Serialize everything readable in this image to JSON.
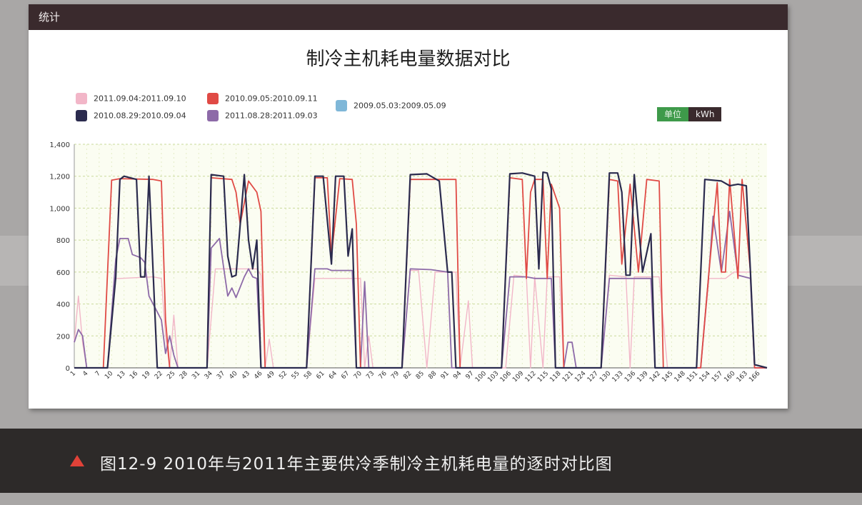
{
  "panel": {
    "header": "统计"
  },
  "chart_data": {
    "type": "line",
    "title": "制冷主机耗电量数据对比",
    "unit_label": "单位",
    "unit_value": "kWh",
    "ylim": [
      0,
      1400
    ],
    "yticks": [
      0,
      200,
      400,
      600,
      800,
      1000,
      1200,
      1400
    ],
    "ytick_labels": [
      "0",
      "200",
      "400",
      "600",
      "800",
      "1,000",
      "1,200",
      "1,400"
    ],
    "xticks": [
      "1",
      "4",
      "7",
      "10",
      "13",
      "16",
      "19",
      "22",
      "25",
      "28",
      "31",
      "34",
      "37",
      "40",
      "43",
      "46",
      "49",
      "52",
      "55",
      "58",
      "61",
      "64",
      "67",
      "70",
      "73",
      "76",
      "79",
      "82",
      "85",
      "88",
      "91",
      "94",
      "97",
      "100",
      "103",
      "106",
      "109",
      "112",
      "115",
      "118",
      "121",
      "124",
      "127",
      "130",
      "133",
      "136",
      "139",
      "142",
      "145",
      "148",
      "151",
      "154",
      "157",
      "160",
      "163",
      "166"
    ],
    "xlim": [
      1,
      168
    ],
    "grid": true,
    "legend_position": "top-left",
    "series": [
      {
        "name": "2011.09.04:2011.09.10",
        "color": "#f2b6c8",
        "points": [
          [
            1,
            160
          ],
          [
            2,
            450
          ],
          [
            3,
            160
          ],
          [
            4,
            0
          ],
          [
            9,
            0
          ],
          [
            11,
            560
          ],
          [
            12,
            560
          ],
          [
            20,
            570
          ],
          [
            22,
            560
          ],
          [
            23,
            200
          ],
          [
            24,
            0
          ],
          [
            25,
            330
          ],
          [
            26,
            0
          ],
          [
            27,
            0
          ],
          [
            33,
            0
          ],
          [
            35,
            620
          ],
          [
            45,
            620
          ],
          [
            46,
            580
          ],
          [
            47,
            0
          ],
          [
            48,
            180
          ],
          [
            49,
            0
          ],
          [
            57,
            0
          ],
          [
            59,
            560
          ],
          [
            70,
            560
          ],
          [
            71,
            0
          ],
          [
            72,
            200
          ],
          [
            73,
            0
          ],
          [
            80,
            0
          ],
          [
            82,
            610
          ],
          [
            84,
            610
          ],
          [
            86,
            0
          ],
          [
            88,
            600
          ],
          [
            93,
            600
          ],
          [
            94,
            0
          ],
          [
            96,
            420
          ],
          [
            97,
            0
          ],
          [
            105,
            0
          ],
          [
            107,
            580
          ],
          [
            110,
            570
          ],
          [
            111,
            0
          ],
          [
            112,
            570
          ],
          [
            114,
            0
          ],
          [
            115,
            570
          ],
          [
            118,
            570
          ],
          [
            119,
            0
          ],
          [
            128,
            0
          ],
          [
            130,
            580
          ],
          [
            134,
            570
          ],
          [
            135,
            0
          ],
          [
            136,
            570
          ],
          [
            142,
            570
          ],
          [
            144,
            0
          ],
          [
            152,
            0
          ],
          [
            154,
            560
          ],
          [
            158,
            560
          ],
          [
            160,
            600
          ],
          [
            164,
            600
          ],
          [
            165,
            0
          ],
          [
            168,
            0
          ]
        ]
      },
      {
        "name": "2010.09.05:2010.09.11",
        "color": "#e04a45",
        "points": [
          [
            1,
            0
          ],
          [
            8,
            0
          ],
          [
            10,
            1175
          ],
          [
            12,
            1185
          ],
          [
            20,
            1180
          ],
          [
            22,
            1170
          ],
          [
            23,
            300
          ],
          [
            24,
            0
          ],
          [
            33,
            0
          ],
          [
            34,
            1190
          ],
          [
            39,
            1180
          ],
          [
            40,
            1100
          ],
          [
            41,
            900
          ],
          [
            43,
            1170
          ],
          [
            45,
            1100
          ],
          [
            46,
            980
          ],
          [
            47,
            0
          ],
          [
            57,
            0
          ],
          [
            59,
            1190
          ],
          [
            62,
            1190
          ],
          [
            63,
            700
          ],
          [
            65,
            1185
          ],
          [
            68,
            1180
          ],
          [
            69,
            900
          ],
          [
            70,
            0
          ],
          [
            80,
            0
          ],
          [
            82,
            1180
          ],
          [
            93,
            1180
          ],
          [
            94,
            0
          ],
          [
            104,
            0
          ],
          [
            106,
            1190
          ],
          [
            109,
            1180
          ],
          [
            110,
            560
          ],
          [
            111,
            1100
          ],
          [
            112,
            1180
          ],
          [
            114,
            1180
          ],
          [
            115,
            560
          ],
          [
            116,
            1150
          ],
          [
            118,
            1000
          ],
          [
            119,
            0
          ],
          [
            128,
            0
          ],
          [
            130,
            1180
          ],
          [
            132,
            1170
          ],
          [
            133,
            650
          ],
          [
            135,
            1150
          ],
          [
            137,
            600
          ],
          [
            139,
            1180
          ],
          [
            142,
            1170
          ],
          [
            143,
            0
          ],
          [
            152,
            0
          ],
          [
            154,
            600
          ],
          [
            156,
            1160
          ],
          [
            157,
            600
          ],
          [
            158,
            600
          ],
          [
            159,
            1180
          ],
          [
            161,
            560
          ],
          [
            162,
            1180
          ],
          [
            164,
            600
          ],
          [
            165,
            0
          ],
          [
            168,
            0
          ]
        ]
      },
      {
        "name": "2010.08.29:2010.09.04",
        "color": "#2b2b4e",
        "points": [
          [
            1,
            0
          ],
          [
            9,
            0
          ],
          [
            11,
            570
          ],
          [
            12,
            1180
          ],
          [
            13,
            1200
          ],
          [
            16,
            1180
          ],
          [
            17,
            570
          ],
          [
            18,
            570
          ],
          [
            19,
            1200
          ],
          [
            20,
            600
          ],
          [
            21,
            0
          ],
          [
            33,
            0
          ],
          [
            34,
            1210
          ],
          [
            37,
            1200
          ],
          [
            38,
            700
          ],
          [
            39,
            570
          ],
          [
            40,
            580
          ],
          [
            42,
            1210
          ],
          [
            43,
            800
          ],
          [
            44,
            620
          ],
          [
            45,
            800
          ],
          [
            46,
            0
          ],
          [
            57,
            0
          ],
          [
            59,
            1200
          ],
          [
            61,
            1200
          ],
          [
            63,
            650
          ],
          [
            64,
            1200
          ],
          [
            66,
            1200
          ],
          [
            67,
            700
          ],
          [
            68,
            870
          ],
          [
            69,
            0
          ],
          [
            80,
            0
          ],
          [
            82,
            1210
          ],
          [
            86,
            1215
          ],
          [
            89,
            1170
          ],
          [
            91,
            600
          ],
          [
            92,
            600
          ],
          [
            93,
            0
          ],
          [
            104,
            0
          ],
          [
            106,
            1215
          ],
          [
            109,
            1220
          ],
          [
            112,
            1200
          ],
          [
            113,
            620
          ],
          [
            114,
            1225
          ],
          [
            115,
            1220
          ],
          [
            116,
            1120
          ],
          [
            117,
            0
          ],
          [
            128,
            0
          ],
          [
            130,
            1220
          ],
          [
            132,
            1220
          ],
          [
            133,
            1100
          ],
          [
            134,
            580
          ],
          [
            135,
            580
          ],
          [
            136,
            1210
          ],
          [
            138,
            600
          ],
          [
            140,
            840
          ],
          [
            141,
            0
          ],
          [
            151,
            0
          ],
          [
            153,
            1180
          ],
          [
            157,
            1170
          ],
          [
            159,
            1140
          ],
          [
            161,
            1150
          ],
          [
            163,
            1140
          ],
          [
            164,
            600
          ],
          [
            165,
            20
          ],
          [
            168,
            0
          ]
        ]
      },
      {
        "name": "2011.08.28:2011.09.03",
        "color": "#8d6aa8",
        "points": [
          [
            1,
            160
          ],
          [
            2,
            240
          ],
          [
            3,
            200
          ],
          [
            4,
            0
          ],
          [
            9,
            0
          ],
          [
            11,
            680
          ],
          [
            12,
            810
          ],
          [
            14,
            810
          ],
          [
            15,
            710
          ],
          [
            17,
            690
          ],
          [
            18,
            660
          ],
          [
            19,
            450
          ],
          [
            20,
            400
          ],
          [
            22,
            300
          ],
          [
            23,
            90
          ],
          [
            24,
            200
          ],
          [
            25,
            80
          ],
          [
            26,
            0
          ],
          [
            33,
            0
          ],
          [
            34,
            750
          ],
          [
            36,
            810
          ],
          [
            38,
            450
          ],
          [
            39,
            500
          ],
          [
            40,
            440
          ],
          [
            42,
            570
          ],
          [
            43,
            620
          ],
          [
            44,
            570
          ],
          [
            45,
            560
          ],
          [
            46,
            0
          ],
          [
            57,
            0
          ],
          [
            59,
            620
          ],
          [
            62,
            620
          ],
          [
            63,
            610
          ],
          [
            68,
            610
          ],
          [
            69,
            0
          ],
          [
            70,
            0
          ],
          [
            71,
            540
          ],
          [
            72,
            0
          ],
          [
            80,
            0
          ],
          [
            82,
            620
          ],
          [
            87,
            615
          ],
          [
            91,
            600
          ],
          [
            92,
            0
          ],
          [
            104,
            0
          ],
          [
            106,
            570
          ],
          [
            110,
            570
          ],
          [
            112,
            560
          ],
          [
            114,
            560
          ],
          [
            116,
            560
          ],
          [
            117,
            0
          ],
          [
            119,
            0
          ],
          [
            120,
            160
          ],
          [
            121,
            160
          ],
          [
            122,
            0
          ],
          [
            128,
            0
          ],
          [
            130,
            560
          ],
          [
            134,
            560
          ],
          [
            136,
            560
          ],
          [
            140,
            560
          ],
          [
            141,
            0
          ],
          [
            152,
            0
          ],
          [
            154,
            600
          ],
          [
            155,
            950
          ],
          [
            157,
            600
          ],
          [
            159,
            980
          ],
          [
            161,
            580
          ],
          [
            164,
            560
          ],
          [
            165,
            0
          ],
          [
            168,
            0
          ]
        ]
      },
      {
        "name": "2009.05.03:2009.05.09",
        "color": "#7fb7d8",
        "points": []
      }
    ]
  },
  "caption": {
    "text": "图12-9   2010年与2011年主要供冷季制冷主机耗电量的逐时对比图"
  }
}
